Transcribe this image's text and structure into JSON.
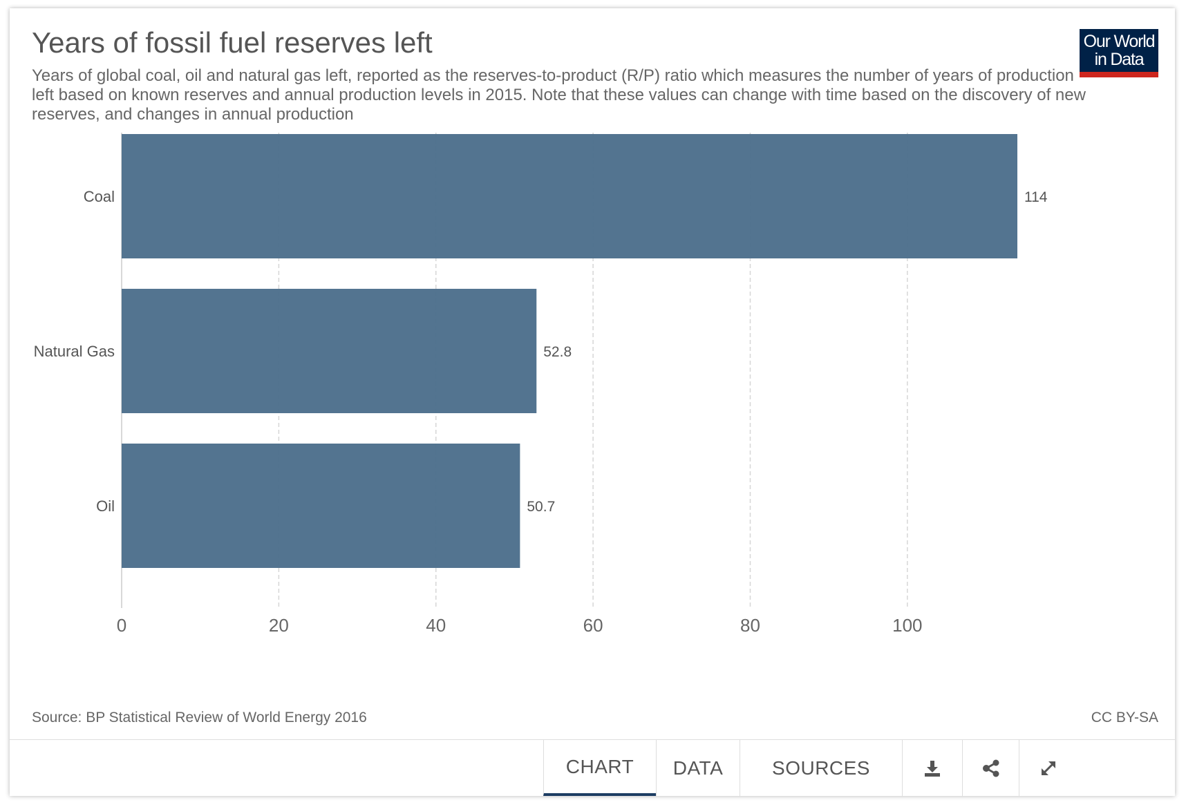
{
  "header": {
    "title": "Years of fossil fuel reserves left",
    "subtitle": "Years of global coal, oil and natural gas left, reported as the reserves-to-product (R/P) ratio which measures the number of years of production left based on known reserves and annual production levels in 2015. Note that these values can change with time based on the discovery of new reserves, and changes in annual production"
  },
  "logo": {
    "line1": "Our World",
    "line2": "in Data"
  },
  "chart_data": {
    "type": "bar",
    "orientation": "horizontal",
    "categories": [
      "Coal",
      "Natural Gas",
      "Oil"
    ],
    "values": [
      114,
      52.8,
      50.7
    ],
    "value_labels": [
      "114",
      "52.8",
      "50.7"
    ],
    "xlim": [
      0,
      114
    ],
    "xticks": [
      0,
      20,
      40,
      60,
      80,
      100
    ],
    "xtick_labels": [
      "0",
      "20",
      "40",
      "60",
      "80",
      "100"
    ],
    "grid": "vertical dashed",
    "bar_color": "#4d6f8c"
  },
  "footer": {
    "source": "Source: BP Statistical Review of World Energy 2016",
    "license": "CC BY-SA"
  },
  "tabs": [
    {
      "label": "CHART",
      "active": true
    },
    {
      "label": "DATA",
      "active": false
    },
    {
      "label": "SOURCES",
      "active": false
    }
  ],
  "actions": [
    {
      "icon": "download-icon"
    },
    {
      "icon": "share-icon"
    },
    {
      "icon": "expand-icon"
    }
  ],
  "colors": {
    "accent": "#1d3d63",
    "logo_bg": "#002147",
    "logo_bar": "#ce261e"
  }
}
